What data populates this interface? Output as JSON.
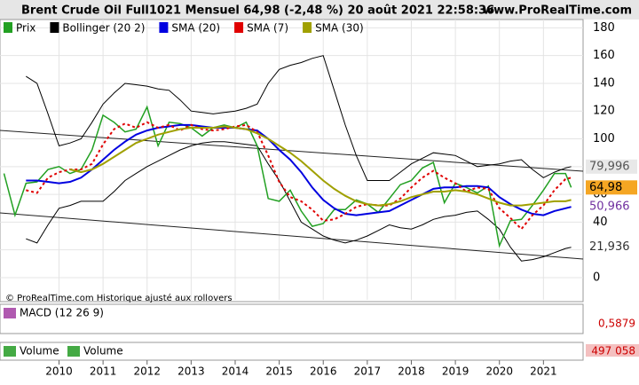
{
  "chart_data": {
    "type": "line",
    "title": "Brent Crude Oil Full1021 Mensuel 64,98 (-2,48 %) 20 août 2021 22:58:36",
    "site": "www.ProRealTime.com",
    "note": "© ProRealTime.com  Historique ajusté aux rollovers",
    "x": [
      2008.75,
      2009,
      2009.25,
      2009.5,
      2009.75,
      2010,
      2010.25,
      2010.5,
      2010.75,
      2011,
      2011.25,
      2011.5,
      2011.75,
      2012,
      2012.25,
      2012.5,
      2012.75,
      2013,
      2013.25,
      2013.5,
      2013.75,
      2014,
      2014.25,
      2014.5,
      2014.75,
      2015,
      2015.25,
      2015.5,
      2015.75,
      2016,
      2016.25,
      2016.5,
      2016.75,
      2017,
      2017.25,
      2017.5,
      2017.75,
      2018,
      2018.25,
      2018.5,
      2018.75,
      2019,
      2019.25,
      2019.5,
      2019.75,
      2020,
      2020.25,
      2020.5,
      2020.75,
      2021,
      2021.25,
      2021.5,
      2021.63
    ],
    "series": [
      {
        "name": "Prix",
        "color": "#22a022",
        "values": [
          75,
          45,
          68,
          69,
          78,
          80,
          75,
          78,
          92,
          117,
          112,
          105,
          107,
          123,
          95,
          112,
          111,
          108,
          102,
          108,
          110,
          108,
          112,
          95,
          57,
          55,
          63,
          48,
          37,
          39,
          49,
          49,
          56,
          53,
          47,
          57,
          67,
          70,
          79,
          83,
          54,
          68,
          65,
          61,
          66,
          23,
          41,
          42,
          52,
          63,
          75,
          75,
          64.98
        ]
      },
      {
        "name": "SMA (20)",
        "color": "#0000e0",
        "values": [
          null,
          null,
          70,
          70,
          69,
          68,
          69,
          72,
          78,
          85,
          92,
          98,
          103,
          106,
          108,
          109,
          110,
          110,
          109,
          108,
          108,
          108,
          107,
          106,
          100,
          92,
          85,
          76,
          65,
          56,
          50,
          46,
          45,
          46,
          47,
          48,
          52,
          56,
          60,
          64,
          65,
          65,
          66,
          66,
          65,
          58,
          53,
          49,
          46,
          45,
          48,
          50,
          50.966
        ]
      },
      {
        "name": "SMA (7)",
        "color": "#e00000",
        "dash": true,
        "values": [
          null,
          null,
          63,
          61,
          72,
          76,
          78,
          78,
          82,
          96,
          107,
          111,
          108,
          112,
          108,
          110,
          106,
          110,
          107,
          106,
          107,
          109,
          110,
          105,
          88,
          69,
          58,
          55,
          49,
          41,
          42,
          46,
          51,
          53,
          52,
          52,
          57,
          65,
          72,
          77,
          72,
          68,
          62,
          65,
          64,
          50,
          43,
          35,
          45,
          52,
          63,
          71,
          72
        ]
      },
      {
        "name": "SMA (30)",
        "color": "#a0a000",
        "values": [
          null,
          null,
          null,
          null,
          null,
          null,
          78,
          76,
          78,
          82,
          87,
          92,
          97,
          100,
          103,
          105,
          107,
          108,
          108,
          108,
          109,
          108,
          107,
          104,
          100,
          95,
          90,
          84,
          77,
          70,
          64,
          59,
          55,
          53,
          52,
          53,
          55,
          58,
          60,
          62,
          62,
          63,
          62,
          60,
          57,
          54,
          52,
          52,
          53,
          54,
          55,
          55,
          56
        ]
      }
    ],
    "bollinger": {
      "name": "Bollinger (20 2)",
      "color": "#000000",
      "upper": [
        null,
        null,
        145,
        140,
        118,
        95,
        97,
        100,
        112,
        125,
        133,
        140,
        139,
        138,
        136,
        135,
        128,
        120,
        119,
        118,
        119,
        120,
        122,
        125,
        140,
        150,
        153,
        155,
        158,
        160,
        135,
        110,
        88,
        70,
        70,
        70,
        76,
        82,
        86,
        90,
        89,
        88,
        84,
        80,
        81,
        82,
        84,
        85,
        78,
        72,
        76,
        79,
        79.996
      ],
      "lower": [
        null,
        null,
        28,
        25,
        38,
        50,
        52,
        55,
        55,
        55,
        62,
        70,
        75,
        80,
        84,
        88,
        92,
        95,
        97,
        98,
        98,
        97,
        96,
        95,
        82,
        70,
        55,
        40,
        35,
        30,
        27,
        25,
        27,
        30,
        34,
        38,
        36,
        35,
        38,
        42,
        44,
        45,
        47,
        48,
        42,
        35,
        22,
        12,
        13,
        15,
        18,
        21,
        21.936
      ]
    },
    "last_labels": [
      {
        "value": 79.996,
        "label": "79,996",
        "color": "#555555",
        "box": "#e8e8e8"
      },
      {
        "value": 64.98,
        "label": "64,98",
        "color": "#000000",
        "box": "#f5a623"
      },
      {
        "value": 50.966,
        "label": "50,966",
        "color": "#7030a0",
        "box": "#ffffff"
      },
      {
        "value": 21.936,
        "label": "21,936",
        "color": "#333333",
        "box": "#ffffff"
      }
    ],
    "xlim": [
      2008.66,
      2021.9
    ],
    "xticks": [
      2010,
      2011,
      2012,
      2013,
      2014,
      2015,
      2016,
      2017,
      2018,
      2019,
      2020,
      2021
    ],
    "ylim": [
      -16,
      186
    ],
    "yticks": [
      0,
      20,
      40,
      60,
      80,
      100,
      120,
      140,
      160,
      180
    ],
    "grid": true,
    "macd": {
      "name": "MACD (12 26 9)",
      "last": {
        "value": 0.5879,
        "label": "0,5879"
      }
    },
    "volume": {
      "names": [
        "Volume",
        "Volume"
      ],
      "last": {
        "value": 497058,
        "label": "497 058"
      }
    }
  }
}
